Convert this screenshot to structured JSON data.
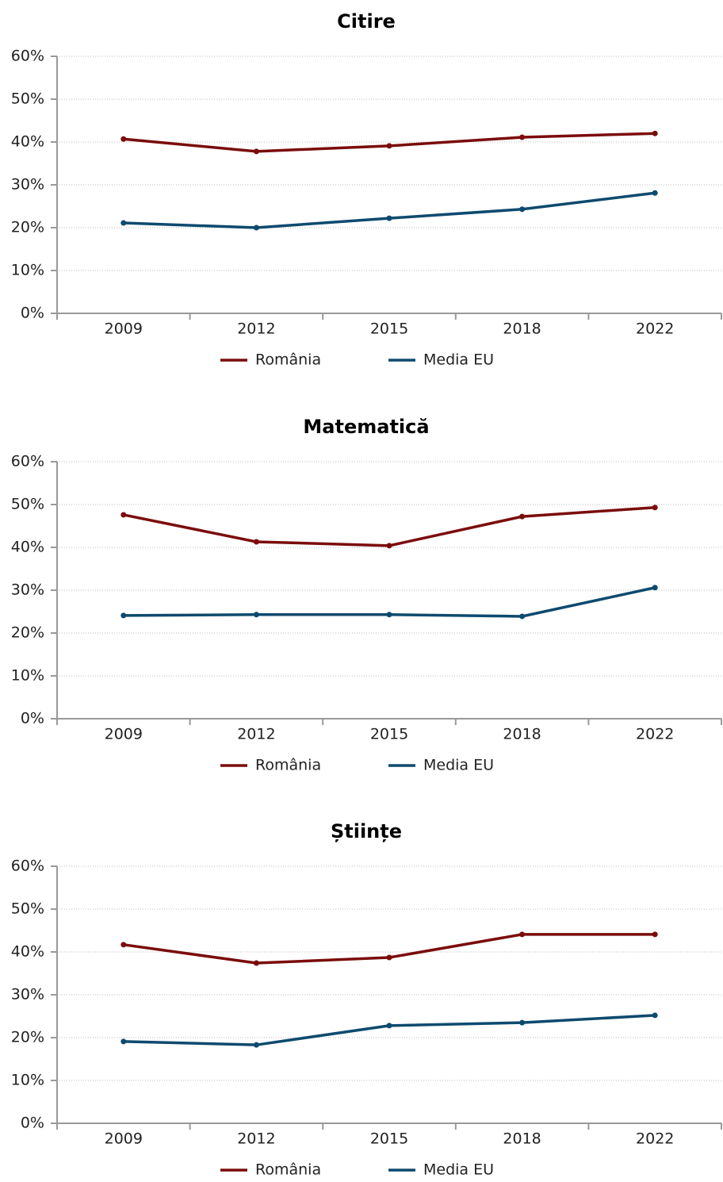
{
  "chart_data": [
    {
      "type": "line",
      "title": "Citire",
      "categories": [
        "2009",
        "2012",
        "2015",
        "2018",
        "2022"
      ],
      "series": [
        {
          "name": "România",
          "color": "#7b0c0c",
          "values": [
            40.7,
            37.8,
            39.1,
            41.1,
            42.0
          ]
        },
        {
          "name": "Media EU",
          "color": "#0e4a6e",
          "values": [
            21.1,
            20.0,
            22.2,
            24.3,
            28.1
          ]
        }
      ],
      "ylim": [
        0,
        60
      ],
      "yticks": [
        {
          "value": 0,
          "label": "0%"
        },
        {
          "value": 10,
          "label": "10%"
        },
        {
          "value": 20,
          "label": "20%"
        },
        {
          "value": 30,
          "label": "30%"
        },
        {
          "value": 40,
          "label": "40%"
        },
        {
          "value": 50,
          "label": "50%"
        },
        {
          "value": 60,
          "label": "60%"
        }
      ],
      "grid": true,
      "legend": "bottom"
    },
    {
      "type": "line",
      "title": "Matematică",
      "categories": [
        "2009",
        "2012",
        "2015",
        "2018",
        "2022"
      ],
      "series": [
        {
          "name": "România",
          "color": "#7b0c0c",
          "values": [
            47.6,
            41.3,
            40.4,
            47.2,
            49.3
          ]
        },
        {
          "name": "Media EU",
          "color": "#0e4a6e",
          "values": [
            24.1,
            24.3,
            24.3,
            23.9,
            30.6
          ]
        }
      ],
      "ylim": [
        0,
        60
      ],
      "yticks": [
        {
          "value": 0,
          "label": "0%"
        },
        {
          "value": 10,
          "label": "10%"
        },
        {
          "value": 20,
          "label": "20%"
        },
        {
          "value": 30,
          "label": "30%"
        },
        {
          "value": 40,
          "label": "40%"
        },
        {
          "value": 50,
          "label": "50%"
        },
        {
          "value": 60,
          "label": "60%"
        }
      ],
      "grid": true,
      "legend": "bottom"
    },
    {
      "type": "line",
      "title": "Științe",
      "categories": [
        "2009",
        "2012",
        "2015",
        "2018",
        "2022"
      ],
      "series": [
        {
          "name": "România",
          "color": "#7b0c0c",
          "values": [
            41.7,
            37.4,
            38.7,
            44.1,
            44.1
          ]
        },
        {
          "name": "Media EU",
          "color": "#0e4a6e",
          "values": [
            19.1,
            18.3,
            22.8,
            23.5,
            25.2
          ]
        }
      ],
      "ylim": [
        0,
        60
      ],
      "yticks": [
        {
          "value": 0,
          "label": "0%"
        },
        {
          "value": 10,
          "label": "10%"
        },
        {
          "value": 20,
          "label": "20%"
        },
        {
          "value": 30,
          "label": "30%"
        },
        {
          "value": 40,
          "label": "40%"
        },
        {
          "value": 50,
          "label": "50%"
        },
        {
          "value": 60,
          "label": "60%"
        }
      ],
      "grid": true,
      "legend": "bottom"
    }
  ]
}
